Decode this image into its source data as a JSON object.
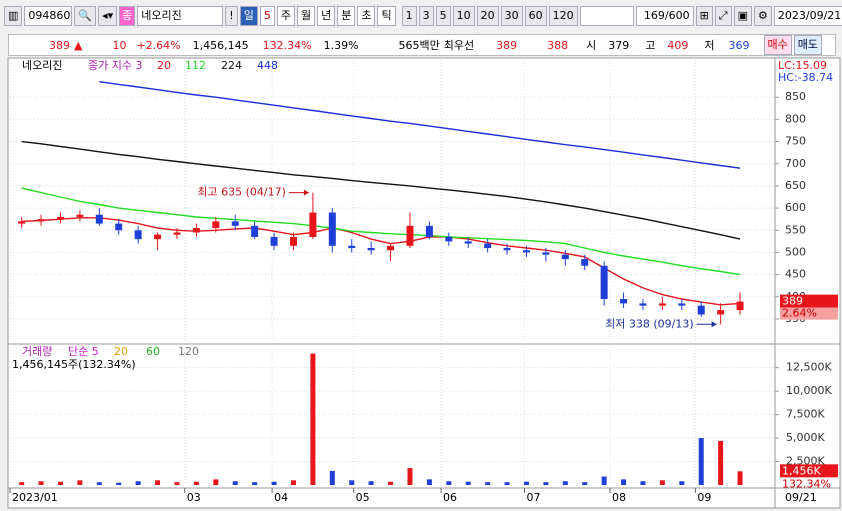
{
  "toolbar": {
    "code": "094860",
    "badge": "종",
    "name": "네오리진",
    "period_selected": "일",
    "period_value": "5",
    "periods": [
      "주",
      "월",
      "년",
      "분",
      "초",
      "틱"
    ],
    "intervals": [
      "1",
      "3",
      "5",
      "10",
      "20",
      "30",
      "60",
      "120"
    ],
    "count": "169/600",
    "date": "2023/09/21"
  },
  "info_bar": {
    "price": "389",
    "arrow": "▲",
    "change": "10",
    "rate": "+2.64%",
    "volume": "1,456,145",
    "volume_ratio": "132.34%",
    "turnover": "1.39%",
    "amount": "565백만",
    "best_label": "최우선",
    "ask": "389",
    "bid": "388",
    "open_label": "시",
    "open": "379",
    "high_label": "고",
    "high": "409",
    "low_label": "저",
    "low": "369",
    "buy": "매수",
    "sell": "매도"
  },
  "chart_data": [
    {
      "type": "candlestick",
      "title": "네오리진",
      "legend_title": "종가 지수 3",
      "up_color": "#e8141b",
      "down_color": "#1f3fd8",
      "categories": [
        null,
        null,
        null,
        null,
        null,
        null,
        null,
        null,
        null,
        null,
        null,
        null,
        null,
        null,
        null,
        null,
        null,
        null,
        null,
        null,
        null,
        null,
        null,
        null,
        null,
        null,
        null,
        null,
        null,
        null,
        null,
        null,
        null,
        null,
        null,
        null,
        null,
        null
      ],
      "open": [
        565,
        570,
        575,
        580,
        585,
        565,
        550,
        530,
        540,
        545,
        555,
        570,
        560,
        535,
        515,
        535,
        590,
        515,
        510,
        505,
        515,
        560,
        535,
        525,
        520,
        510,
        505,
        500,
        495,
        485,
        470,
        395,
        385,
        380,
        385,
        380,
        360,
        370
      ],
      "high": [
        580,
        585,
        590,
        595,
        600,
        575,
        560,
        545,
        555,
        565,
        580,
        585,
        570,
        545,
        545,
        635,
        600,
        530,
        525,
        520,
        590,
        570,
        545,
        535,
        530,
        520,
        515,
        510,
        505,
        495,
        480,
        410,
        395,
        400,
        395,
        390,
        385,
        410
      ],
      "low": [
        555,
        560,
        565,
        570,
        560,
        540,
        520,
        505,
        530,
        535,
        545,
        550,
        530,
        505,
        505,
        530,
        500,
        500,
        495,
        480,
        510,
        530,
        515,
        510,
        500,
        495,
        490,
        480,
        470,
        460,
        380,
        375,
        370,
        370,
        370,
        355,
        338,
        360
      ],
      "close": [
        570,
        575,
        580,
        585,
        565,
        550,
        530,
        540,
        545,
        555,
        570,
        560,
        535,
        515,
        535,
        590,
        515,
        510,
        505,
        515,
        560,
        535,
        525,
        520,
        510,
        505,
        500,
        495,
        485,
        470,
        395,
        385,
        380,
        385,
        380,
        360,
        370,
        389
      ],
      "series": [
        {
          "name": "20",
          "color": "#e8141b",
          "values": [
            570,
            572,
            575,
            578,
            578,
            573,
            565,
            555,
            550,
            548,
            550,
            553,
            555,
            548,
            540,
            545,
            555,
            545,
            530,
            520,
            525,
            535,
            535,
            530,
            522,
            515,
            510,
            505,
            498,
            490,
            465,
            440,
            420,
            405,
            395,
            388,
            382,
            385
          ]
        },
        {
          "name": "112",
          "color": "#22dd22",
          "values": [
            645,
            635,
            625,
            615,
            608,
            600,
            595,
            590,
            585,
            580,
            577,
            574,
            571,
            568,
            565,
            560,
            555,
            548,
            545,
            542,
            540,
            538,
            535,
            533,
            531,
            529,
            527,
            524,
            520,
            510,
            500,
            492,
            485,
            478,
            470,
            463,
            457,
            450
          ]
        },
        {
          "name": "224",
          "color": "#111111",
          "values": [
            750,
            745,
            739,
            733,
            727,
            721,
            716,
            710,
            705,
            700,
            695,
            690,
            685,
            680,
            675,
            671,
            667,
            662,
            658,
            654,
            650,
            645,
            641,
            636,
            631,
            626,
            620,
            614,
            607,
            600,
            592,
            584,
            576,
            567,
            558,
            549,
            540,
            530
          ]
        },
        {
          "name": "448",
          "color": "#1a2fd6",
          "values": [
            null,
            null,
            null,
            null,
            885,
            879,
            873,
            867,
            861,
            855,
            850,
            844,
            838,
            832,
            826,
            820,
            814,
            808,
            802,
            796,
            791,
            785,
            779,
            773,
            767,
            761,
            755,
            749,
            743,
            738,
            732,
            726,
            720,
            714,
            708,
            702,
            696,
            690
          ]
        }
      ],
      "lc_label": "LC:15.09",
      "hc_label": "HC:-38.74",
      "annotations": [
        {
          "text": "최고 635 (04/17)",
          "x": 15,
          "y": 635,
          "color": "#c8141b"
        },
        {
          "text": "최저 338 (09/13)",
          "x": 36,
          "y": 338,
          "color": "#1a2fa0"
        }
      ],
      "last_price_label": "389",
      "last_change_label": "2.64%",
      "xlim": [
        -0.6,
        38.8
      ],
      "ylim": [
        298,
        934
      ],
      "yticks": [
        350,
        400,
        450,
        500,
        550,
        600,
        650,
        700,
        750,
        800,
        850
      ],
      "grid": true
    },
    {
      "type": "bar",
      "title": "거래량",
      "legend": [
        {
          "name": "단순 5",
          "color": "#d020d0"
        },
        {
          "name": "20",
          "color": "#e0a000"
        },
        {
          "name": "60",
          "color": "#22aa22"
        },
        {
          "name": "120",
          "color": "#777777"
        }
      ],
      "summary": "1,456,145주(132.34%)",
      "last_volume_label": "1,456K",
      "last_ratio_label": "132.34%",
      "values": [
        300000,
        400000,
        350000,
        500000,
        300000,
        250000,
        400000,
        500000,
        300000,
        350000,
        600000,
        400000,
        300000,
        350000,
        500000,
        14000000,
        1500000,
        500000,
        400000,
        350000,
        1800000,
        600000,
        400000,
        350000,
        300000,
        300000,
        350000,
        300000,
        400000,
        300000,
        900000,
        600000,
        400000,
        500000,
        400000,
        5000000,
        4700000,
        1456145
      ],
      "xlim": [
        -0.6,
        38.8
      ],
      "ylim": [
        0,
        14700000
      ],
      "yticks": [
        {
          "value": 2500000,
          "label": "2,500K"
        },
        {
          "value": 5000000,
          "label": "5,000K"
        },
        {
          "value": 7500000,
          "label": "7,500K"
        },
        {
          "value": 10000000,
          "label": "10,000K"
        },
        {
          "value": 12500000,
          "label": "12,500K"
        }
      ],
      "xticks": [
        {
          "value": -0.6,
          "label": "2023/01"
        },
        {
          "value": 8.4,
          "label": "03"
        },
        {
          "value": 12.9,
          "label": "04"
        },
        {
          "value": 17.1,
          "label": "05"
        },
        {
          "value": 21.6,
          "label": "06"
        },
        {
          "value": 25.9,
          "label": "07"
        },
        {
          "value": 30.3,
          "label": "08"
        },
        {
          "value": 34.7,
          "label": "09"
        }
      ],
      "last_date_label": "09/21",
      "grid": true
    }
  ]
}
